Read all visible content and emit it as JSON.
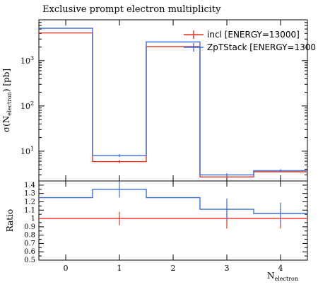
{
  "chart_data": [
    {
      "type": "line",
      "panel": "main",
      "title": "Exclusive prompt electron multiplicity",
      "ylabel_html": "σ(N_electron) [pb]",
      "ylabel": "σ(N",
      "ylabel_sub": "electron",
      "ylabel_tail": ") [pb]",
      "yscale": "log",
      "ylim": [
        2.2,
        8000
      ],
      "xlim": [
        -0.5,
        4.5
      ],
      "ytick_labels": [
        {
          "value": 10,
          "base": "10",
          "exp": "1"
        },
        {
          "value": 100,
          "base": "10",
          "exp": "2"
        },
        {
          "value": 1000,
          "base": "10",
          "exp": "3"
        }
      ],
      "legend_position": "top-right",
      "bins": [
        [
          -0.5,
          0.5
        ],
        [
          0.5,
          1.5
        ],
        [
          1.5,
          2.5
        ],
        [
          2.5,
          3.5
        ],
        [
          3.5,
          4.5
        ]
      ],
      "series": [
        {
          "name": "incl [ENERGY=13000]",
          "color": "#e8311f",
          "values": [
            4100,
            5.9,
            2050,
            2.7,
            3.5
          ],
          "errors": [
            0,
            0.5,
            0,
            0,
            0
          ]
        },
        {
          "name": "ZpTStack [ENERGY=1300",
          "color": "#3b6fe0",
          "values": [
            5200,
            8.0,
            2600,
            3.0,
            3.7
          ],
          "errors": [
            0,
            0.6,
            0,
            0.25,
            0.3
          ]
        }
      ]
    },
    {
      "type": "line",
      "panel": "ratio",
      "ylabel": "Ratio",
      "xlabel": "N",
      "xlabel_sub": "electron",
      "ylim": [
        0.5,
        1.45
      ],
      "xlim": [
        -0.5,
        4.5
      ],
      "xtick_labels": [
        "0",
        "1",
        "2",
        "3",
        "4"
      ],
      "ytick_labels": [
        "0.5",
        "0.6",
        "0.7",
        "0.8",
        "0.9",
        "1",
        "1.1",
        "1.2",
        "1.3",
        "1.4"
      ],
      "bins": [
        [
          -0.5,
          0.5
        ],
        [
          0.5,
          1.5
        ],
        [
          1.5,
          2.5
        ],
        [
          2.5,
          3.5
        ],
        [
          3.5,
          4.5
        ]
      ],
      "series": [
        {
          "name": "incl [ENERGY=13000]",
          "color": "#e8311f",
          "values": [
            1.0,
            1.0,
            1.0,
            1.0,
            1.0
          ],
          "errors": [
            0,
            0.08,
            0,
            0.12,
            0.12
          ]
        },
        {
          "name": "ZpTStack [ENERGY=1300",
          "color": "#3b6fe0",
          "values": [
            1.25,
            1.35,
            1.25,
            1.11,
            1.06
          ],
          "errors": [
            0,
            0.1,
            0,
            0.13,
            0.13
          ]
        }
      ]
    }
  ]
}
